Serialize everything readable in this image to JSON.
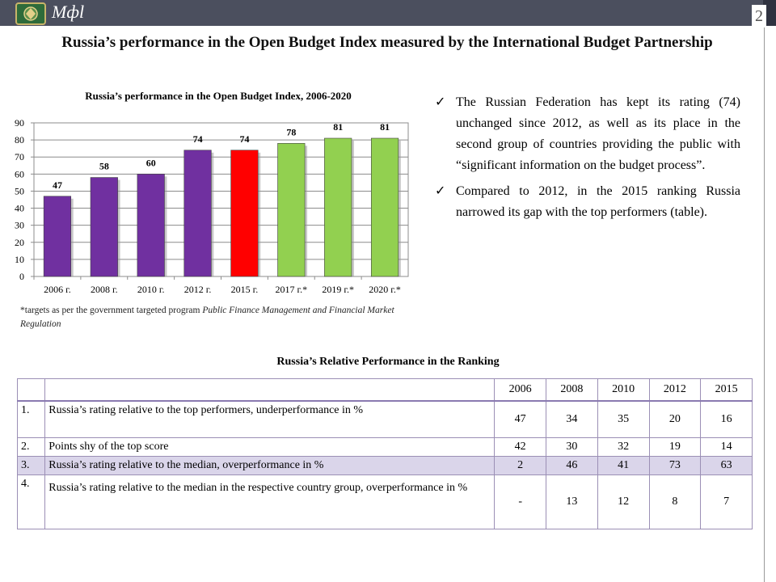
{
  "header": {
    "logo_text": "Мфl",
    "slide_number": "2"
  },
  "slide_title": "Russia’s performance in the Open Budget Index measured by the International Budget Partnership",
  "chart_data": {
    "type": "bar",
    "title": "Russia’s performance in the Open Budget Index, 2006-2020",
    "categories": [
      "2006 г.",
      "2008 г.",
      "2010 г.",
      "2012 г.",
      "2015 г.",
      "2017 г.*",
      "2019 г.*",
      "2020 г.*"
    ],
    "values": [
      47,
      58,
      60,
      74,
      74,
      78,
      81,
      81
    ],
    "colors": [
      "#7030a0",
      "#7030a0",
      "#7030a0",
      "#7030a0",
      "#ff0000",
      "#92d050",
      "#92d050",
      "#92d050"
    ],
    "xlabel": "",
    "ylabel": "",
    "ylim": [
      0,
      90
    ],
    "yticks": [
      0,
      10,
      20,
      30,
      40,
      50,
      60,
      70,
      80,
      90
    ],
    "grid": true,
    "legend": "none"
  },
  "chart_note": {
    "prefix": "*targets as per the government targeted program ",
    "program": "Public Finance Management and Financial Market Regulation"
  },
  "bullets": [
    "The Russian Federation has kept its rating (74) unchanged since 2012, as well as its place in the second group of countries providing the public with “significant information on the budget process”.",
    "Compared to 2012, in the 2015 ranking Russia narrowed its gap with the top performers (table)."
  ],
  "table": {
    "title": "Russia’s Relative Performance in the Ranking",
    "years": [
      "2006",
      "2008",
      "2010",
      "2012",
      "2015"
    ],
    "rows": [
      {
        "num": "1.",
        "label": "Russia’s rating relative to the top performers, underperformance in %",
        "values": [
          "47",
          "34",
          "35",
          "20",
          "16"
        ]
      },
      {
        "num": "2.",
        "label": "Points shy of the top score",
        "values": [
          "42",
          "30",
          "32",
          "19",
          "14"
        ]
      },
      {
        "num": "3.",
        "label": "Russia’s rating relative to the median, overperformance in %",
        "values": [
          "2",
          "46",
          "41",
          "73",
          "63"
        ]
      },
      {
        "num": "4.",
        "label": "Russia’s rating relative to the median in the respective country group, overperformance in %",
        "values": [
          "-",
          "13",
          "12",
          "8",
          "7"
        ]
      }
    ]
  }
}
